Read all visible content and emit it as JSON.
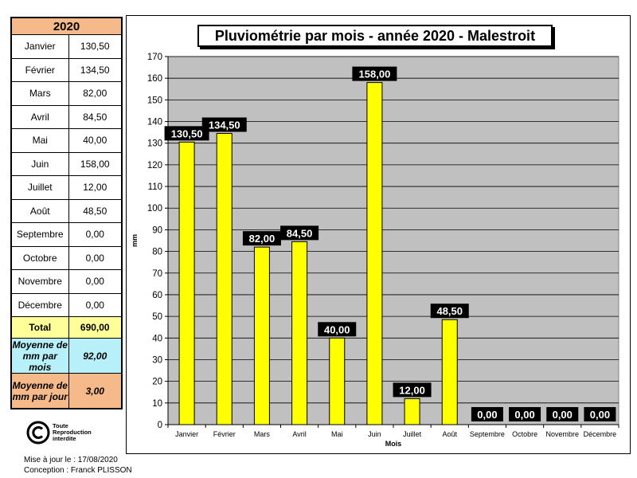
{
  "table": {
    "year": "2020",
    "months": [
      {
        "name": "Janvier",
        "value": "130,50"
      },
      {
        "name": "Février",
        "value": "134,50"
      },
      {
        "name": "Mars",
        "value": "82,00"
      },
      {
        "name": "Avril",
        "value": "84,50"
      },
      {
        "name": "Mai",
        "value": "40,00"
      },
      {
        "name": "Juin",
        "value": "158,00"
      },
      {
        "name": "Juillet",
        "value": "12,00"
      },
      {
        "name": "Août",
        "value": "48,50"
      },
      {
        "name": "Septembre",
        "value": "0,00"
      },
      {
        "name": "Octobre",
        "value": "0,00"
      },
      {
        "name": "Novembre",
        "value": "0,00"
      },
      {
        "name": "Décembre",
        "value": "0,00"
      }
    ],
    "total_label": "Total",
    "total_value": "690,00",
    "avg_month_label": "Moyenne de mm par mois",
    "avg_month_value": "92,00",
    "avg_day_label": "Moyenne de mm par jour",
    "avg_day_value": "3,00"
  },
  "copyright": {
    "icon": "copyright-icon",
    "text_line1": "Toute",
    "text_line2": "Reproduction",
    "text_line3": "interdite"
  },
  "footer": {
    "updated": "Mise à jour le : 17/08/2020",
    "author": "Conception : Franck PLISSON"
  },
  "colors": {
    "bar": "#ffff00",
    "plot_bg": "#c0c0c0",
    "label_bg": "#000000",
    "label_text": "#ffffff",
    "year_bg": "#f5b98a",
    "total_bg": "#ffff99",
    "avg_month_bg": "#b7f0f8"
  },
  "chart_data": {
    "type": "bar",
    "title": "Pluviométrie par mois - année 2020 - Malestroit",
    "xlabel": "Mois",
    "ylabel": "mm",
    "ylim": [
      0,
      170
    ],
    "yticks": [
      0,
      10,
      20,
      30,
      40,
      50,
      60,
      70,
      80,
      90,
      100,
      110,
      120,
      130,
      140,
      150,
      160,
      170
    ],
    "grid": true,
    "categories": [
      "Janvier",
      "Février",
      "Mars",
      "Avril",
      "Mai",
      "Juin",
      "Juillet",
      "Août",
      "Septembre",
      "Octobre",
      "Novembre",
      "Décembre"
    ],
    "values": [
      130.5,
      134.5,
      82.0,
      84.5,
      40.0,
      158.0,
      12.0,
      48.5,
      0.0,
      0.0,
      0.0,
      0.0
    ],
    "data_labels": [
      "130,50",
      "134,50",
      "82,00",
      "84,50",
      "40,00",
      "158,00",
      "12,00",
      "48,50",
      "0,00",
      "0,00",
      "0,00",
      "0,00"
    ]
  }
}
